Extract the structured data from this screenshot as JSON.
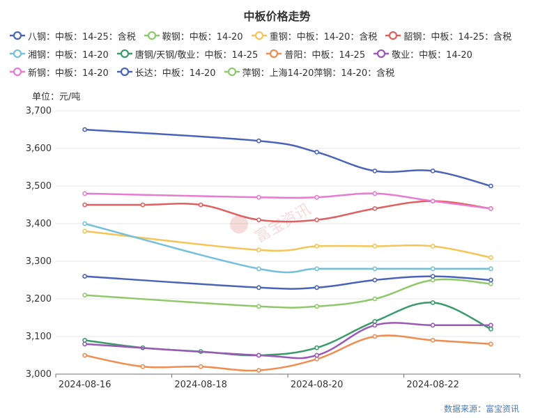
{
  "chart_data": {
    "type": "line",
    "title": "中板价格走势",
    "unit_label": "单位：元/吨",
    "source": "数据来源：富宝资讯",
    "watermark": "富宝资讯",
    "ylim": [
      3000,
      3700
    ],
    "yticks": [
      "3,000",
      "3,100",
      "3,200",
      "3,300",
      "3,400",
      "3,500",
      "3,600",
      "3,700"
    ],
    "ytick_values": [
      3000,
      3100,
      3200,
      3300,
      3400,
      3500,
      3600,
      3700
    ],
    "xticks": [
      "2024-08-16",
      "2024-08-18",
      "2024-08-20",
      "2024-08-22"
    ],
    "xlim": [
      "2024-08-15.5",
      "2024-08-23.5"
    ],
    "x": [
      "2024-08-16",
      "2024-08-17",
      "2024-08-18",
      "2024-08-19",
      "2024-08-20",
      "2024-08-21",
      "2024-08-22",
      "2024-08-23"
    ],
    "grid": true,
    "legend_position": "top",
    "series": [
      {
        "name": "八钢：中板：14-25：含税",
        "color": "#4a63b9",
        "values": [
          3650,
          null,
          null,
          3620,
          3590,
          3540,
          3540,
          3500
        ]
      },
      {
        "name": "鞍钢：中板：14-20",
        "color": "#8fc86a",
        "values": [
          3210,
          null,
          null,
          3180,
          3180,
          3200,
          3250,
          3240
        ]
      },
      {
        "name": "重钢：中板：14-20：含税",
        "color": "#f5c455",
        "values": [
          3380,
          null,
          null,
          3330,
          3340,
          3340,
          3340,
          3310
        ]
      },
      {
        "name": "韶钢：中板：14-25：含税",
        "color": "#e06060",
        "values": [
          3450,
          3450,
          3450,
          3410,
          3410,
          3440,
          3460,
          3440
        ]
      },
      {
        "name": "湘钢：中板：14-20",
        "color": "#74c0dc",
        "values": [
          3400,
          null,
          null,
          3280,
          3280,
          3280,
          3280,
          3280
        ]
      },
      {
        "name": "唐钢/天钢/敬业：中板：14-25",
        "color": "#3a9a6a",
        "values": [
          3090,
          3070,
          3060,
          3050,
          3070,
          3140,
          3190,
          3120
        ]
      },
      {
        "name": "普阳：中板：14-25",
        "color": "#f08c50",
        "values": [
          3050,
          3020,
          3020,
          3010,
          3040,
          3100,
          3090,
          3080
        ]
      },
      {
        "name": "敬业：中板：14-20",
        "color": "#9b59b6",
        "values": [
          3080,
          null,
          null,
          3050,
          3050,
          3130,
          3130,
          3130
        ]
      },
      {
        "name": "新钢：中板：14-20",
        "color": "#e87bd0",
        "values": [
          3480,
          null,
          null,
          3470,
          3470,
          3480,
          3460,
          3440
        ]
      },
      {
        "name": "长达：中板：14-20",
        "color": "#4a63b9",
        "values": [
          3260,
          null,
          null,
          3230,
          3230,
          3250,
          3260,
          3250
        ]
      },
      {
        "name": "萍钢：上海14-20萍钢：14-20：含税",
        "color": "#8fc86a",
        "values": [
          null,
          null,
          null,
          null,
          null,
          null,
          null,
          null
        ]
      }
    ]
  }
}
